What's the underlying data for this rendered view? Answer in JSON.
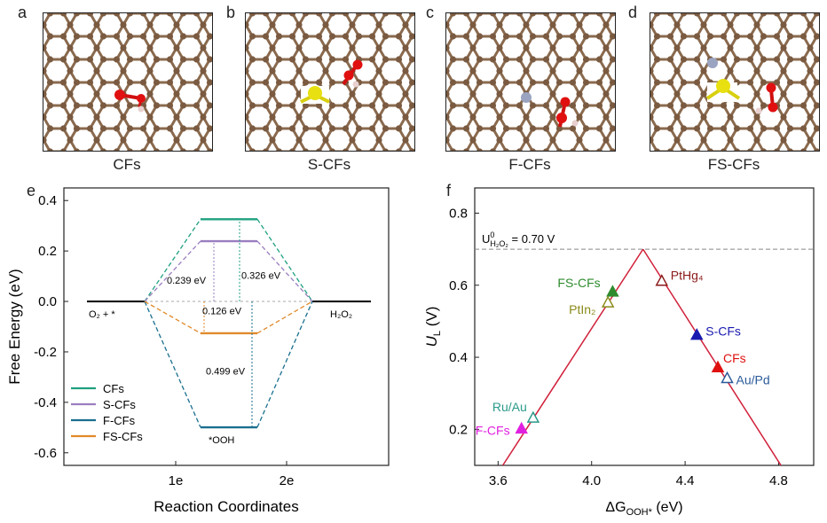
{
  "panels": {
    "a": {
      "letter": "a",
      "caption": "CFs"
    },
    "b": {
      "letter": "b",
      "caption": "S-CFs"
    },
    "c": {
      "letter": "c",
      "caption": "F-CFs"
    },
    "d": {
      "letter": "d",
      "caption": "FS-CFs"
    },
    "e": {
      "letter": "e"
    },
    "f": {
      "letter": "f"
    }
  },
  "chart_data": [
    {
      "type": "line",
      "panel": "e",
      "xlabel": "Reaction Coordinates",
      "ylabel": "Free Energy (eV)",
      "ylim": [
        -0.65,
        0.45
      ],
      "y_ticks": [
        "0.4",
        "0.2",
        "0.0",
        "-0.2",
        "-0.4",
        "-0.6"
      ],
      "x_ticks": [
        "1e",
        "2e"
      ],
      "states": {
        "start": "O₂ + *",
        "mid": "*OOH",
        "end": "H₂O₂"
      },
      "series": [
        {
          "name": "CFs",
          "color": "#20a080",
          "values": [
            0,
            0.326,
            0
          ]
        },
        {
          "name": "S-CFs",
          "color": "#9a7ec0",
          "values": [
            0,
            0.239,
            0
          ]
        },
        {
          "name": "F-CFs",
          "color": "#1a6f8f",
          "values": [
            0,
            -0.499,
            0
          ]
        },
        {
          "name": "FS-CFs",
          "color": "#e08a2a",
          "values": [
            0,
            -0.126,
            0
          ]
        }
      ],
      "annotations": [
        "0.239 eV",
        "0.326 eV",
        "0.126 eV",
        "0.499 eV"
      ],
      "legend": "bottom-left"
    },
    {
      "type": "scatter",
      "panel": "f",
      "xlabel": "ΔG",
      "xlabel_sub": "OOH*",
      "xlabel_unit": " (eV)",
      "ylabel": "U",
      "ylabel_sub": "L",
      "ylabel_unit": " (V)",
      "xlim": [
        3.5,
        4.95
      ],
      "ylim": [
        0.1,
        0.87
      ],
      "x_ticks": [
        "3.6",
        "4.0",
        "4.4",
        "4.8"
      ],
      "y_ticks": [
        "0.8",
        "0.6",
        "0.4",
        "0.2"
      ],
      "reference_label": "U",
      "reference_sup": "0",
      "reference_sub": "H₂O₂",
      "reference_value": " = 0.70 V",
      "reference_y": 0.7,
      "volcano_peak": [
        4.22,
        0.7
      ],
      "points": [
        {
          "label": "FS-CFs",
          "x": 4.09,
          "y": 0.58,
          "color": "#2e8b2e",
          "filled": true
        },
        {
          "label": "PtIn₂",
          "x": 4.07,
          "y": 0.55,
          "color": "#8a8a1a",
          "filled": false
        },
        {
          "label": "PtHg₄",
          "x": 4.3,
          "y": 0.61,
          "color": "#8b1a1a",
          "filled": false
        },
        {
          "label": "S-CFs",
          "x": 4.45,
          "y": 0.46,
          "color": "#1a1ab0",
          "filled": true
        },
        {
          "label": "CFs",
          "x": 4.54,
          "y": 0.37,
          "color": "#e01010",
          "filled": true
        },
        {
          "label": "Au/Pd",
          "x": 4.58,
          "y": 0.34,
          "color": "#2a5a9a",
          "filled": false
        },
        {
          "label": "Ru/Au",
          "x": 3.75,
          "y": 0.23,
          "color": "#2a9a8a",
          "filled": false
        },
        {
          "label": "F-CFs",
          "x": 3.7,
          "y": 0.2,
          "color": "#e020e0",
          "filled": true
        }
      ]
    }
  ]
}
